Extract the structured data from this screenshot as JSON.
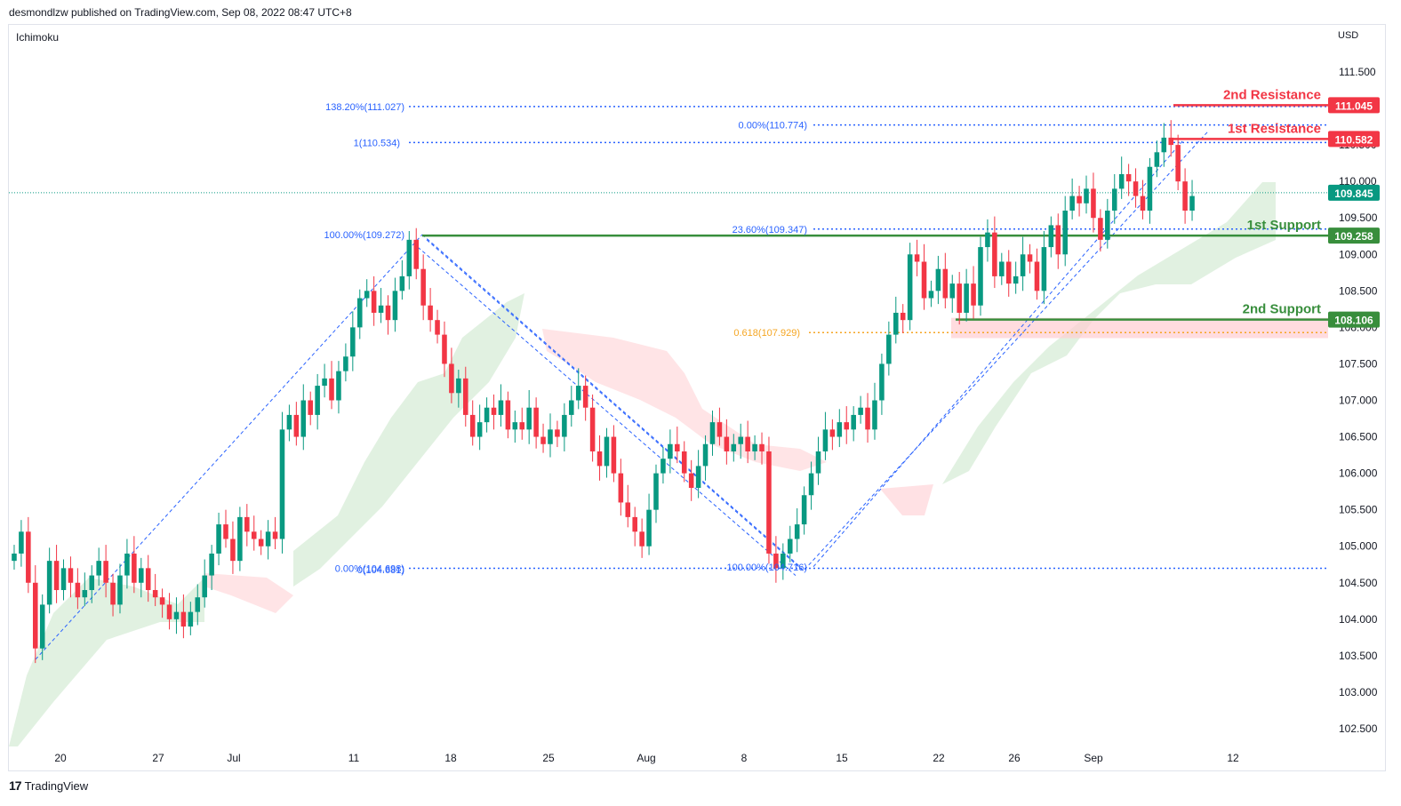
{
  "header": {
    "published_by": "desmondlzw published on TradingView.com, Sep 08, 2022 08:47 UTC+8",
    "indicator": "Ichimoku",
    "currency": "USD",
    "footer_brand": "TradingView",
    "footer_logo": "17"
  },
  "chart_data": {
    "type": "candlestick",
    "title": "",
    "ylabel": "USD",
    "ylim": [
      102.2,
      111.95
    ],
    "y_ticks": [
      "111.500",
      "111.000",
      "110.500",
      "110.000",
      "109.500",
      "109.000",
      "108.500",
      "108.000",
      "107.500",
      "107.000",
      "106.500",
      "106.000",
      "105.500",
      "105.000",
      "104.500",
      "104.000",
      "103.500",
      "103.000",
      "102.500"
    ],
    "x_ticks": [
      "20",
      "27",
      "Jul",
      "11",
      "18",
      "25",
      "Aug",
      "8",
      "15",
      "22",
      "26",
      "Sep",
      "12"
    ],
    "last_price": "109.845",
    "price_labels": [
      {
        "value": 111.045,
        "text": "111.045",
        "color": "#f23645"
      },
      {
        "value": 110.582,
        "text": "110.582",
        "color": "#f23645"
      },
      {
        "value": 109.845,
        "text": "109.845",
        "color": "#089981"
      },
      {
        "value": 109.258,
        "text": "109.258",
        "color": "#388e3c"
      },
      {
        "value": 108.106,
        "text": "108.106",
        "color": "#388e3c"
      }
    ],
    "levels": [
      {
        "name": "2nd Resistance",
        "value": 111.045,
        "color": "#f23645"
      },
      {
        "name": "1st Resistance",
        "value": 110.582,
        "color": "#f23645"
      },
      {
        "name": "1st Support",
        "value": 109.258,
        "color": "#388e3c"
      },
      {
        "name": "2nd Support",
        "value": 108.106,
        "color": "#388e3c"
      }
    ],
    "fib_annotations": [
      {
        "text": "138.20%(111.027)",
        "value": 111.027,
        "color": "#2962ff"
      },
      {
        "text": "1(110.534)",
        "value": 110.534,
        "color": "#2962ff"
      },
      {
        "text": "0.00%(110.774)",
        "value": 110.774,
        "color": "#2962ff"
      },
      {
        "text": "23.60%(109.347)",
        "value": 109.347,
        "color": "#2962ff"
      },
      {
        "text": "100.00%(109.272)",
        "value": 109.272,
        "color": "#2962ff"
      },
      {
        "text": "0.618(107.929)",
        "value": 107.929,
        "color": "#f5a623"
      },
      {
        "text": "0.00%(104.698)",
        "value": 104.698,
        "color": "#2962ff"
      },
      {
        "text": "0(104.681)",
        "value": 104.681,
        "color": "#2962ff"
      },
      {
        "text": "100.00%(104.716)",
        "value": 104.716,
        "color": "#2962ff"
      }
    ],
    "colors": {
      "up": "#089981",
      "down": "#f23645",
      "resistance": "#f23645",
      "support": "#388e3c",
      "fib": "#2962ff",
      "cloud_bull": "#c8e6c9",
      "cloud_bear": "#ffcdd2"
    },
    "grid": false,
    "close_series": [
      104.9,
      105.2,
      104.5,
      103.6,
      104.2,
      104.8,
      104.4,
      104.7,
      104.5,
      104.3,
      104.4,
      104.6,
      104.8,
      104.5,
      104.2,
      104.6,
      104.9,
      104.5,
      104.7,
      104.4,
      104.3,
      104.2,
      104.0,
      104.1,
      103.9,
      104.1,
      104.3,
      104.6,
      104.9,
      105.3,
      105.1,
      104.8,
      105.4,
      105.2,
      105.1,
      105.0,
      105.2,
      105.1,
      106.6,
      106.8,
      106.5,
      107.0,
      106.8,
      107.2,
      107.3,
      107.0,
      107.4,
      107.6,
      108.0,
      108.4,
      108.5,
      108.2,
      108.3,
      108.1,
      108.5,
      108.7,
      109.2,
      108.8,
      108.3,
      108.1,
      107.9,
      107.5,
      107.1,
      107.3,
      106.8,
      106.5,
      106.7,
      106.9,
      106.8,
      107.0,
      106.6,
      106.7,
      106.6,
      106.9,
      106.5,
      106.4,
      106.6,
      106.5,
      106.8,
      107.0,
      107.2,
      106.9,
      106.3,
      106.1,
      106.5,
      106.0,
      105.6,
      105.4,
      105.2,
      105.0,
      105.5,
      106.0,
      106.2,
      106.4,
      106.3,
      106.0,
      105.8,
      106.1,
      106.4,
      106.7,
      106.5,
      106.3,
      106.4,
      106.5,
      106.3,
      106.4,
      106.3,
      104.9,
      104.7,
      104.9,
      105.1,
      105.3,
      105.7,
      106.0,
      106.3,
      106.6,
      106.5,
      106.7,
      106.6,
      106.8,
      106.9,
      106.6,
      107.0,
      107.5,
      107.9,
      108.2,
      108.1,
      109.0,
      108.9,
      108.4,
      108.5,
      108.8,
      108.4,
      108.6,
      108.2,
      108.6,
      108.3,
      109.1,
      109.3,
      108.7,
      108.9,
      108.6,
      108.7,
      109.0,
      108.9,
      108.5,
      109.1,
      109.4,
      109.0,
      109.6,
      109.8,
      109.7,
      109.9,
      109.5,
      109.2,
      109.6,
      109.9,
      110.1,
      110.0,
      109.8,
      109.6,
      110.2,
      110.4,
      110.6,
      110.5,
      110.0,
      109.6,
      109.8
    ]
  }
}
